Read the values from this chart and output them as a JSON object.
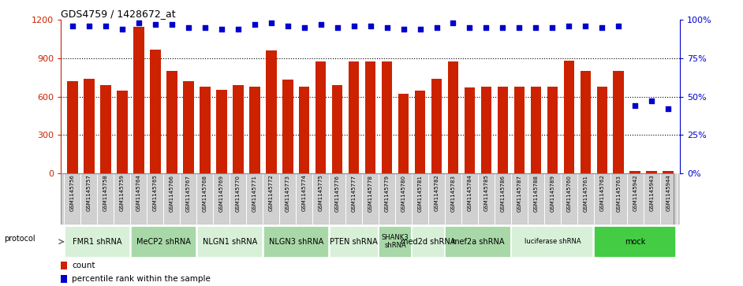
{
  "title": "GDS4759 / 1428672_at",
  "samples": [
    "GSM1145756",
    "GSM1145757",
    "GSM1145758",
    "GSM1145759",
    "GSM1145764",
    "GSM1145765",
    "GSM1145766",
    "GSM1145767",
    "GSM1145768",
    "GSM1145769",
    "GSM1145770",
    "GSM1145771",
    "GSM1145772",
    "GSM1145773",
    "GSM1145774",
    "GSM1145775",
    "GSM1145776",
    "GSM1145777",
    "GSM1145778",
    "GSM1145779",
    "GSM1145780",
    "GSM1145781",
    "GSM1145782",
    "GSM1145783",
    "GSM1145784",
    "GSM1145785",
    "GSM1145786",
    "GSM1145787",
    "GSM1145788",
    "GSM1145789",
    "GSM1145760",
    "GSM1145761",
    "GSM1145762",
    "GSM1145763",
    "GSM1145942",
    "GSM1145943",
    "GSM1145944"
  ],
  "counts": [
    720,
    740,
    690,
    645,
    1150,
    970,
    800,
    720,
    680,
    655,
    690,
    680,
    960,
    730,
    675,
    875,
    690,
    875,
    875,
    875,
    620,
    645,
    740,
    875,
    670,
    675,
    675,
    675,
    675,
    675,
    880,
    800,
    680,
    800,
    15,
    15,
    15
  ],
  "percentiles": [
    96,
    96,
    96,
    94,
    98,
    97,
    97,
    95,
    95,
    94,
    94,
    97,
    98,
    96,
    95,
    97,
    95,
    96,
    96,
    95,
    94,
    94,
    95,
    98,
    95,
    95,
    95,
    95,
    95,
    95,
    96,
    96,
    95,
    96,
    44,
    47,
    42
  ],
  "protocols": [
    {
      "label": "FMR1 shRNA",
      "start": 0,
      "end": 4,
      "color": "#d8f0d8"
    },
    {
      "label": "MeCP2 shRNA",
      "start": 4,
      "end": 8,
      "color": "#a8d8a8"
    },
    {
      "label": "NLGN1 shRNA",
      "start": 8,
      "end": 12,
      "color": "#d8f0d8"
    },
    {
      "label": "NLGN3 shRNA",
      "start": 12,
      "end": 16,
      "color": "#a8d8a8"
    },
    {
      "label": "PTEN shRNA",
      "start": 16,
      "end": 19,
      "color": "#d8f0d8"
    },
    {
      "label": "SHANK3\nshRNA",
      "start": 19,
      "end": 21,
      "color": "#a8d8a8"
    },
    {
      "label": "med2d shRNA",
      "start": 21,
      "end": 23,
      "color": "#d8f0d8"
    },
    {
      "label": "mef2a shRNA",
      "start": 23,
      "end": 27,
      "color": "#a8d8a8"
    },
    {
      "label": "luciferase shRNA",
      "start": 27,
      "end": 32,
      "color": "#d8f0d8"
    },
    {
      "label": "mock",
      "start": 32,
      "end": 37,
      "color": "#44cc44"
    }
  ],
  "bar_color": "#cc2200",
  "dot_color": "#0000cc",
  "ylim_left": [
    0,
    1200
  ],
  "ylim_right": [
    0,
    100
  ],
  "yticks_left": [
    0,
    300,
    600,
    900,
    1200
  ],
  "yticks_right": [
    0,
    25,
    50,
    75,
    100
  ],
  "grid_values": [
    300,
    600,
    900
  ],
  "sample_bg_color": "#d0d0d0",
  "sample_border_color": "#ffffff"
}
